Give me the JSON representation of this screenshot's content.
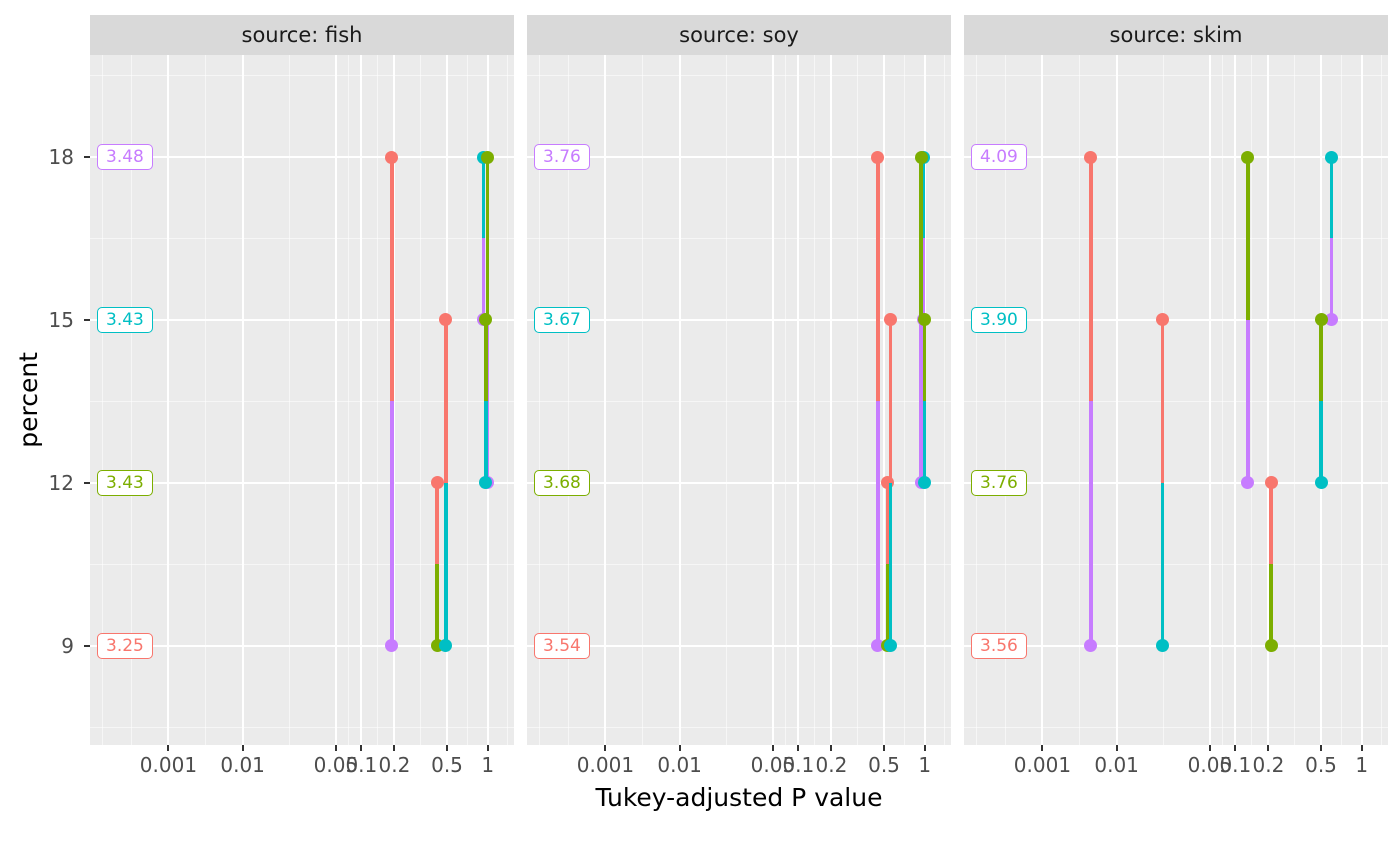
{
  "figure": {
    "x_axis_title": "Tukey-adjusted P value",
    "y_axis_title": "percent",
    "x_tick_labels": [
      "0.001",
      "0.01",
      "0.05",
      "0.1",
      "0.2",
      "0.5",
      "1"
    ],
    "y_tick_labels": [
      "18",
      "15",
      "12",
      "9"
    ]
  },
  "theme": {
    "panel_background": "#EBEBEB",
    "strip_background": "#D9D9D9",
    "grid_color": "#FFFFFF",
    "tick_label_color": "#4D4D4D"
  },
  "chart_data": {
    "type": "pwpp-comparison-segments",
    "title": "",
    "xlabel": "Tukey-adjusted P value",
    "ylabel": "percent",
    "x_scale": "nonlinear p-value scale",
    "x_breaks": [
      0.001,
      0.01,
      0.05,
      0.1,
      0.2,
      0.5,
      1
    ],
    "x_break_labels": [
      "0.001",
      "0.01",
      "0.05",
      "0.1",
      "0.2",
      "0.5",
      "1"
    ],
    "y_levels": [
      9,
      12,
      15,
      18
    ],
    "level_colors": {
      "9": "#F8766D",
      "12": "#7CAE00",
      "15": "#00BFC4",
      "18": "#C77CFF"
    },
    "facets": [
      {
        "strip": "source: fish",
        "emmeans": [
          {
            "percent": 18,
            "value": "3.48"
          },
          {
            "percent": 15,
            "value": "3.43"
          },
          {
            "percent": 12,
            "value": "3.43"
          },
          {
            "percent": 9,
            "value": "3.25"
          }
        ],
        "comparisons": [
          {
            "pair": [
              9,
              18
            ],
            "p": 0.19
          },
          {
            "pair": [
              9,
              12
            ],
            "p": 0.42
          },
          {
            "pair": [
              9,
              15
            ],
            "p": 0.49
          },
          {
            "pair": [
              15,
              18
            ],
            "p": 0.93
          },
          {
            "pair": [
              12,
              18
            ],
            "p": 1.0
          },
          {
            "pair": [
              12,
              15
            ],
            "p": 0.97
          }
        ]
      },
      {
        "strip": "source: soy",
        "emmeans": [
          {
            "percent": 18,
            "value": "3.76"
          },
          {
            "percent": 15,
            "value": "3.67"
          },
          {
            "percent": 12,
            "value": "3.68"
          },
          {
            "percent": 9,
            "value": "3.54"
          }
        ],
        "comparisons": [
          {
            "pair": [
              9,
              18
            ],
            "p": 0.45
          },
          {
            "pair": [
              9,
              12
            ],
            "p": 0.53
          },
          {
            "pair": [
              9,
              15
            ],
            "p": 0.56
          },
          {
            "pair": [
              15,
              18
            ],
            "p": 0.98
          },
          {
            "pair": [
              12,
              18
            ],
            "p": 0.94
          },
          {
            "pair": [
              12,
              15
            ],
            "p": 1.0
          }
        ]
      },
      {
        "strip": "source: skim",
        "emmeans": [
          {
            "percent": 18,
            "value": "4.09"
          },
          {
            "percent": 15,
            "value": "3.90"
          },
          {
            "percent": 12,
            "value": "3.76"
          },
          {
            "percent": 9,
            "value": "3.56"
          }
        ],
        "comparisons": [
          {
            "pair": [
              9,
              18
            ],
            "p": 0.0045
          },
          {
            "pair": [
              9,
              12
            ],
            "p": 0.21
          },
          {
            "pair": [
              9,
              15
            ],
            "p": 0.022
          },
          {
            "pair": [
              15,
              18
            ],
            "p": 0.6
          },
          {
            "pair": [
              12,
              18
            ],
            "p": 0.13
          },
          {
            "pair": [
              12,
              15
            ],
            "p": 0.5
          }
        ]
      }
    ]
  }
}
